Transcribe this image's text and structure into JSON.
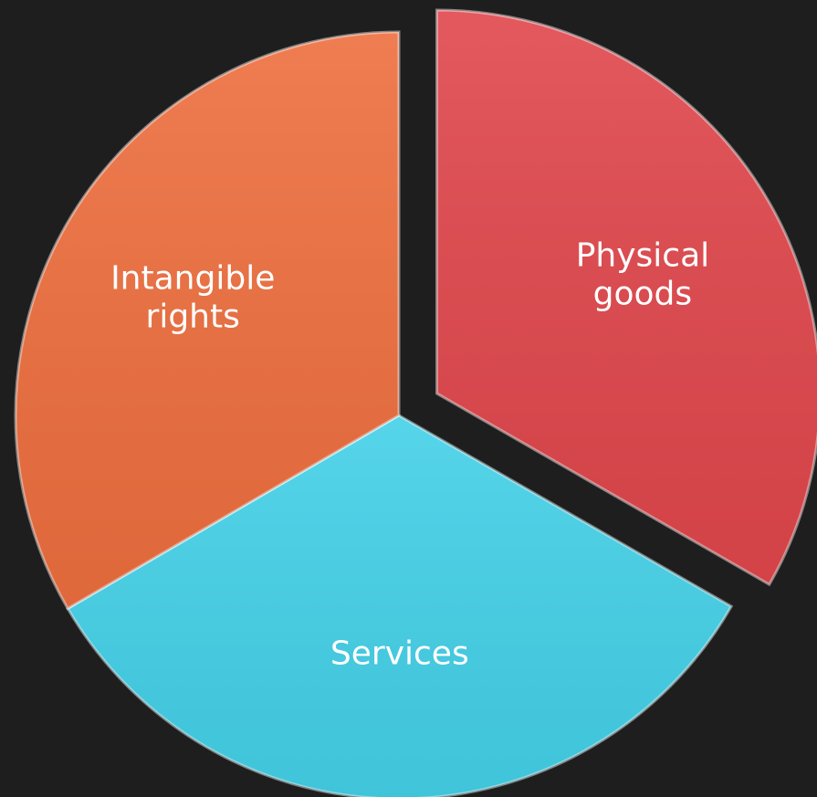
{
  "chart_data": {
    "type": "pie",
    "exploded": "Physical goods",
    "categories": [
      "Physical goods",
      "Services",
      "Intangible rights"
    ],
    "label_lines": [
      [
        "Physical",
        "goods"
      ],
      [
        "Services"
      ],
      [
        "Intangible",
        "rights"
      ]
    ],
    "values": [
      33.3,
      33.3,
      33.4
    ],
    "colors": [
      "#e0474c",
      "#44d1e8",
      "#ee6f3f"
    ],
    "background": "#1e1e1e"
  }
}
